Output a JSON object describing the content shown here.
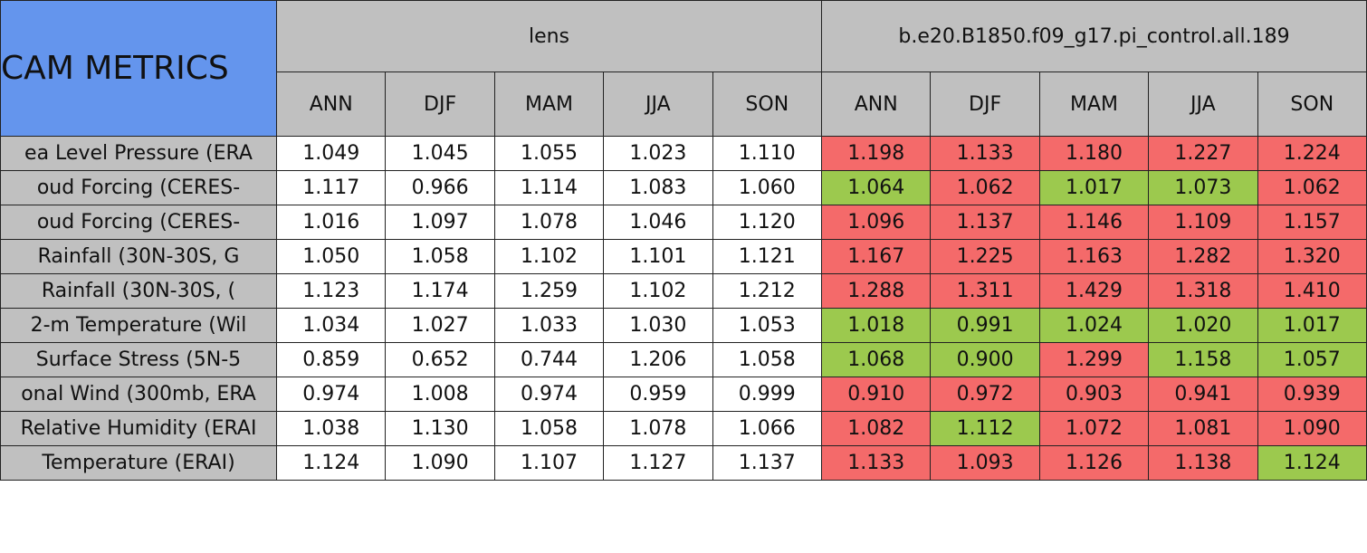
{
  "table": {
    "title": "CAM METRICS",
    "groups": [
      "lens",
      "b.e20.B1850.f09_g17.pi_control.all.189"
    ],
    "seasons": [
      "ANN",
      "DJF",
      "MAM",
      "JJA",
      "SON",
      "ANN",
      "DJF",
      "MAM",
      "JJA",
      "SON"
    ],
    "rows": [
      {
        "label": "ea Level Pressure (ERA",
        "values": [
          "1.049",
          "1.045",
          "1.055",
          "1.023",
          "1.110",
          "1.198",
          "1.133",
          "1.180",
          "1.227",
          "1.224"
        ],
        "colors": [
          "#ffffff",
          "#ffffff",
          "#ffffff",
          "#ffffff",
          "#ffffff",
          "#f46a6a",
          "#f46a6a",
          "#f46a6a",
          "#f46a6a",
          "#f46a6a"
        ]
      },
      {
        "label": "oud Forcing (CERES-",
        "values": [
          "1.117",
          "0.966",
          "1.114",
          "1.083",
          "1.060",
          "1.064",
          "1.062",
          "1.017",
          "1.073",
          "1.062"
        ],
        "colors": [
          "#ffffff",
          "#ffffff",
          "#ffffff",
          "#ffffff",
          "#ffffff",
          "#9cc94e",
          "#f46a6a",
          "#9cc94e",
          "#9cc94e",
          "#f46a6a"
        ]
      },
      {
        "label": "oud Forcing (CERES-",
        "values": [
          "1.016",
          "1.097",
          "1.078",
          "1.046",
          "1.120",
          "1.096",
          "1.137",
          "1.146",
          "1.109",
          "1.157"
        ],
        "colors": [
          "#ffffff",
          "#ffffff",
          "#ffffff",
          "#ffffff",
          "#ffffff",
          "#f46a6a",
          "#f46a6a",
          "#f46a6a",
          "#f46a6a",
          "#f46a6a"
        ]
      },
      {
        "label": "Rainfall (30N-30S, G",
        "values": [
          "1.050",
          "1.058",
          "1.102",
          "1.101",
          "1.121",
          "1.167",
          "1.225",
          "1.163",
          "1.282",
          "1.320"
        ],
        "colors": [
          "#ffffff",
          "#ffffff",
          "#ffffff",
          "#ffffff",
          "#ffffff",
          "#f46a6a",
          "#f46a6a",
          "#f46a6a",
          "#f46a6a",
          "#f46a6a"
        ]
      },
      {
        "label": "Rainfall (30N-30S, (",
        "values": [
          "1.123",
          "1.174",
          "1.259",
          "1.102",
          "1.212",
          "1.288",
          "1.311",
          "1.429",
          "1.318",
          "1.410"
        ],
        "colors": [
          "#ffffff",
          "#ffffff",
          "#ffffff",
          "#ffffff",
          "#ffffff",
          "#f46a6a",
          "#f46a6a",
          "#f46a6a",
          "#f46a6a",
          "#f46a6a"
        ]
      },
      {
        "label": "2-m Temperature (Wil",
        "values": [
          "1.034",
          "1.027",
          "1.033",
          "1.030",
          "1.053",
          "1.018",
          "0.991",
          "1.024",
          "1.020",
          "1.017"
        ],
        "colors": [
          "#ffffff",
          "#ffffff",
          "#ffffff",
          "#ffffff",
          "#ffffff",
          "#9cc94e",
          "#9cc94e",
          "#9cc94e",
          "#9cc94e",
          "#9cc94e"
        ]
      },
      {
        "label": "Surface Stress (5N-5",
        "values": [
          "0.859",
          "0.652",
          "0.744",
          "1.206",
          "1.058",
          "1.068",
          "0.900",
          "1.299",
          "1.158",
          "1.057"
        ],
        "colors": [
          "#ffffff",
          "#ffffff",
          "#ffffff",
          "#ffffff",
          "#ffffff",
          "#9cc94e",
          "#9cc94e",
          "#f46a6a",
          "#9cc94e",
          "#9cc94e"
        ]
      },
      {
        "label": "onal Wind (300mb, ERA",
        "values": [
          "0.974",
          "1.008",
          "0.974",
          "0.959",
          "0.999",
          "0.910",
          "0.972",
          "0.903",
          "0.941",
          "0.939"
        ],
        "colors": [
          "#ffffff",
          "#ffffff",
          "#ffffff",
          "#ffffff",
          "#ffffff",
          "#f46a6a",
          "#f46a6a",
          "#f46a6a",
          "#f46a6a",
          "#f46a6a"
        ]
      },
      {
        "label": "Relative Humidity (ERAI",
        "values": [
          "1.038",
          "1.130",
          "1.058",
          "1.078",
          "1.066",
          "1.082",
          "1.112",
          "1.072",
          "1.081",
          "1.090"
        ],
        "colors": [
          "#ffffff",
          "#ffffff",
          "#ffffff",
          "#ffffff",
          "#ffffff",
          "#f46a6a",
          "#9cc94e",
          "#f46a6a",
          "#f46a6a",
          "#f46a6a"
        ]
      },
      {
        "label": "Temperature (ERAI)",
        "values": [
          "1.124",
          "1.090",
          "1.107",
          "1.127",
          "1.137",
          "1.133",
          "1.093",
          "1.126",
          "1.138",
          "1.124"
        ],
        "colors": [
          "#ffffff",
          "#ffffff",
          "#ffffff",
          "#ffffff",
          "#ffffff",
          "#f46a6a",
          "#f46a6a",
          "#f46a6a",
          "#f46a6a",
          "#9cc94e"
        ]
      }
    ]
  }
}
